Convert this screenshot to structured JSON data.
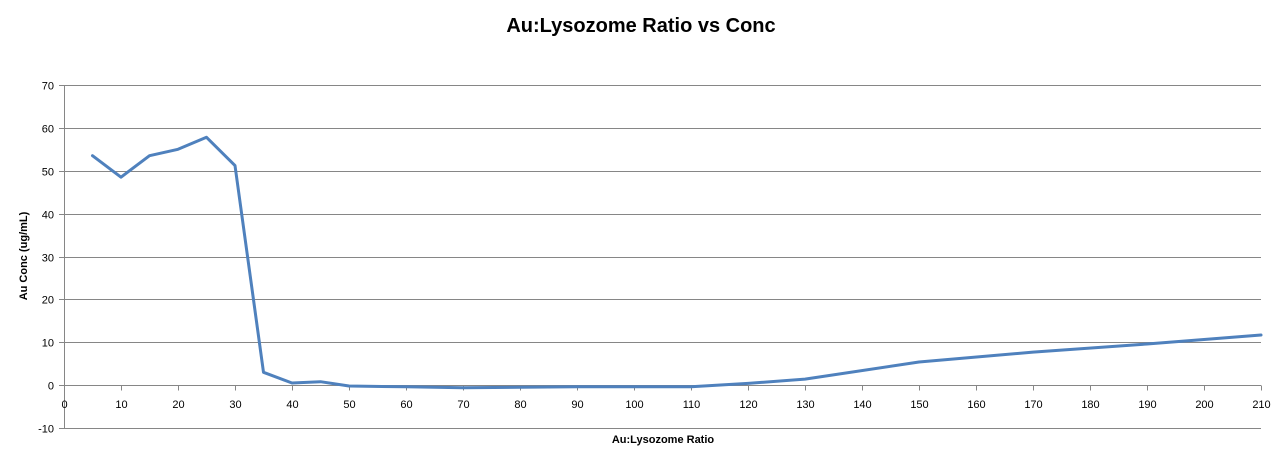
{
  "chart_data": {
    "type": "line",
    "title": "Au:Lysozome Ratio vs Conc",
    "xlabel": "Au:Lysozome Ratio",
    "ylabel": "Au Conc (ug/mL)",
    "xlim": [
      0,
      210
    ],
    "ylim": [
      -10,
      70
    ],
    "x_ticks": [
      0,
      10,
      20,
      30,
      40,
      50,
      60,
      70,
      80,
      90,
      100,
      110,
      120,
      130,
      140,
      150,
      160,
      170,
      180,
      190,
      200,
      210
    ],
    "y_ticks": [
      -10,
      0,
      10,
      20,
      30,
      40,
      50,
      60,
      70
    ],
    "grid": "horizontal",
    "legend": "none",
    "series": [
      {
        "color": "#4F81BD",
        "x": [
          5,
          10,
          15,
          20,
          25,
          30,
          35,
          40,
          45,
          50,
          60,
          70,
          80,
          90,
          100,
          110,
          120,
          130,
          150,
          170,
          190,
          210
        ],
        "y": [
          53.5,
          48.5,
          53.5,
          55,
          57.8,
          51.2,
          3,
          0.5,
          0.8,
          -0.2,
          -0.4,
          -0.6,
          -0.5,
          -0.4,
          -0.4,
          -0.4,
          0.4,
          1.4,
          5.4,
          7.7,
          9.6,
          11.7
        ]
      }
    ]
  }
}
